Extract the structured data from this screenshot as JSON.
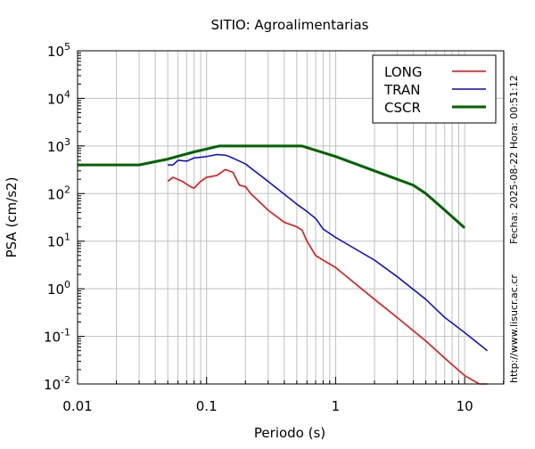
{
  "chart_data": {
    "type": "line",
    "title": "SITIO: Agroalimentarias",
    "xlabel": "Periodo (s)",
    "ylabel": "PSA (cm/s2)",
    "xscale": "log",
    "yscale": "log",
    "xlim": [
      0.01,
      20
    ],
    "ylim": [
      0.01,
      100000
    ],
    "grid": true,
    "legend_position": "top-right",
    "x_ticks": [
      {
        "value": 0.01,
        "label": "0.01"
      },
      {
        "value": 0.1,
        "label": "0.1"
      },
      {
        "value": 1,
        "label": "1"
      },
      {
        "value": 10,
        "label": "10"
      }
    ],
    "y_ticks": [
      {
        "value": 0.01,
        "base": "10",
        "exp": "-2"
      },
      {
        "value": 0.1,
        "base": "10",
        "exp": "-1"
      },
      {
        "value": 1,
        "base": "10",
        "exp": "0"
      },
      {
        "value": 10,
        "base": "10",
        "exp": "1"
      },
      {
        "value": 100,
        "base": "10",
        "exp": "2"
      },
      {
        "value": 1000,
        "base": "10",
        "exp": "3"
      },
      {
        "value": 10000,
        "base": "10",
        "exp": "4"
      },
      {
        "value": 100000,
        "base": "10",
        "exp": "5"
      }
    ],
    "series": [
      {
        "name": "LONG",
        "color": "#ff0000",
        "width": 1.5,
        "points": [
          [
            0.05,
            180
          ],
          [
            0.055,
            220
          ],
          [
            0.065,
            180
          ],
          [
            0.075,
            140
          ],
          [
            0.08,
            130
          ],
          [
            0.09,
            180
          ],
          [
            0.1,
            220
          ],
          [
            0.12,
            240
          ],
          [
            0.14,
            320
          ],
          [
            0.16,
            280
          ],
          [
            0.18,
            150
          ],
          [
            0.2,
            140
          ],
          [
            0.22,
            100
          ],
          [
            0.3,
            45
          ],
          [
            0.4,
            25
          ],
          [
            0.5,
            20
          ],
          [
            0.55,
            17
          ],
          [
            0.6,
            10
          ],
          [
            0.7,
            5
          ],
          [
            0.8,
            4
          ],
          [
            1,
            2.8
          ],
          [
            2,
            0.6
          ],
          [
            3,
            0.25
          ],
          [
            5,
            0.08
          ],
          [
            7,
            0.035
          ],
          [
            10,
            0.015
          ],
          [
            13,
            0.01
          ],
          [
            15,
            0.01
          ]
        ]
      },
      {
        "name": "TRAN",
        "color": "#0000ff",
        "width": 1.5,
        "points": [
          [
            0.05,
            400
          ],
          [
            0.055,
            400
          ],
          [
            0.06,
            500
          ],
          [
            0.07,
            480
          ],
          [
            0.08,
            560
          ],
          [
            0.1,
            600
          ],
          [
            0.12,
            660
          ],
          [
            0.14,
            640
          ],
          [
            0.15,
            600
          ],
          [
            0.2,
            420
          ],
          [
            0.3,
            180
          ],
          [
            0.5,
            60
          ],
          [
            0.6,
            42
          ],
          [
            0.7,
            30
          ],
          [
            0.8,
            18
          ],
          [
            1,
            12
          ],
          [
            2,
            4
          ],
          [
            3,
            1.8
          ],
          [
            5,
            0.6
          ],
          [
            7,
            0.25
          ],
          [
            10,
            0.12
          ],
          [
            15,
            0.05
          ]
        ]
      },
      {
        "name": "CSCR",
        "color": "#006400",
        "width": 3,
        "points": [
          [
            0.01,
            400
          ],
          [
            0.03,
            400
          ],
          [
            0.05,
            530
          ],
          [
            0.08,
            750
          ],
          [
            0.125,
            1000
          ],
          [
            0.55,
            1000
          ],
          [
            1,
            600
          ],
          [
            2,
            300
          ],
          [
            3,
            200
          ],
          [
            4,
            150
          ],
          [
            5,
            100
          ],
          [
            7,
            45
          ],
          [
            10,
            19
          ]
        ]
      }
    ]
  },
  "side_text": {
    "timestamp": "Fecha: 2025-08-22  Hora: 00:51:12",
    "url": "http://www.lisucr.ac.cr"
  }
}
